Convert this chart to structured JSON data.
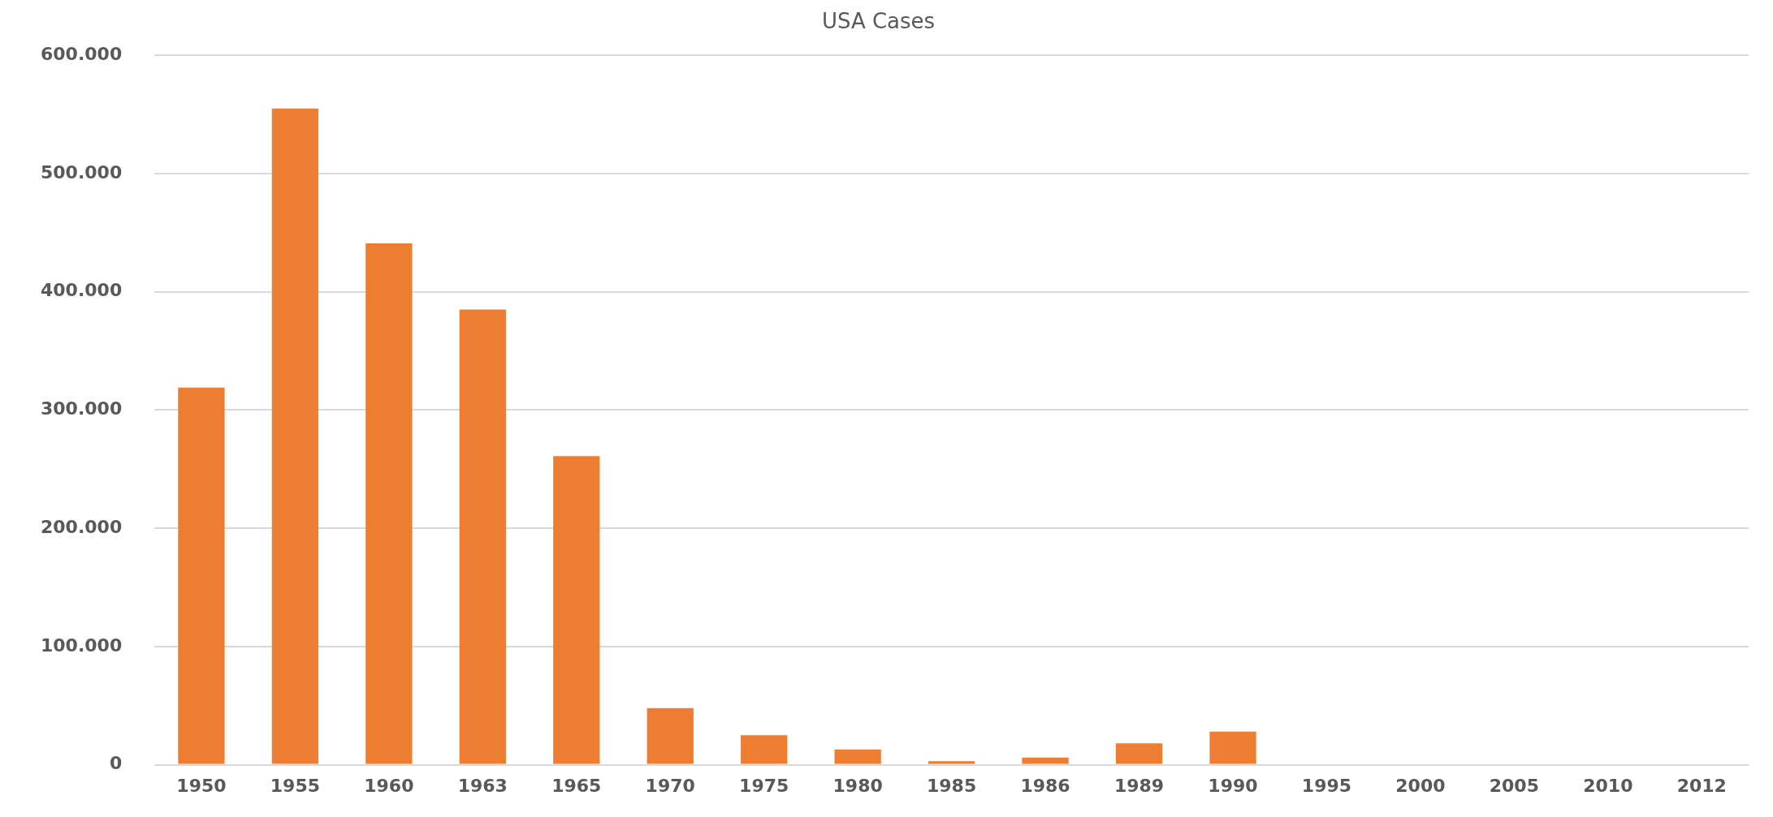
{
  "chart_data": {
    "type": "bar",
    "title": "USA Cases",
    "categories": [
      "1950",
      "1955",
      "1960",
      "1963",
      "1965",
      "1970",
      "1975",
      "1980",
      "1985",
      "1986",
      "1989",
      "1990",
      "1995",
      "2000",
      "2005",
      "2010",
      "2012"
    ],
    "values": [
      319000,
      555000,
      441000,
      385000,
      261000,
      48000,
      25000,
      13000,
      3000,
      6000,
      18000,
      28000,
      0,
      0,
      0,
      0,
      0
    ],
    "color": "#ed7d31",
    "ylim": [
      0,
      600000
    ],
    "yticks": [
      {
        "value": 0,
        "label": "0"
      },
      {
        "value": 100000,
        "label": "100.000"
      },
      {
        "value": 200000,
        "label": "200.000"
      },
      {
        "value": 300000,
        "label": "300.000"
      },
      {
        "value": 400000,
        "label": "400.000"
      },
      {
        "value": 500000,
        "label": "500.000"
      },
      {
        "value": 600000,
        "label": "600.000"
      }
    ],
    "grid": "y"
  }
}
